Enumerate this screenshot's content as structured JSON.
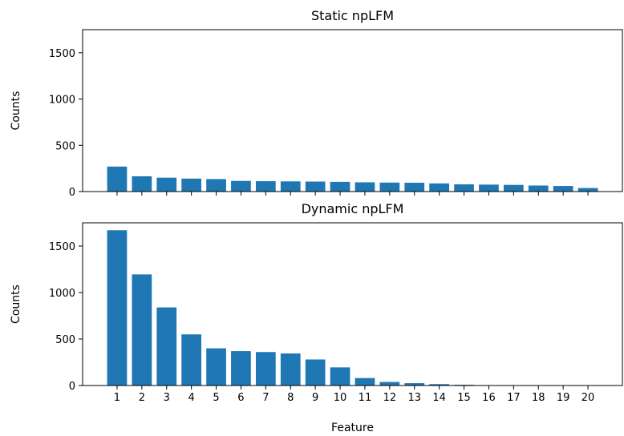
{
  "chart_data": [
    {
      "type": "bar",
      "title": "Static npLFM",
      "xlabel": "",
      "ylabel": "Counts",
      "ylim": [
        0,
        1750
      ],
      "yticks": [
        0,
        500,
        1000,
        1500
      ],
      "categories": [
        "1",
        "2",
        "3",
        "4",
        "5",
        "6",
        "7",
        "8",
        "9",
        "10",
        "11",
        "12",
        "13",
        "14",
        "15",
        "16",
        "17",
        "18",
        "19",
        "20"
      ],
      "values": [
        270,
        165,
        150,
        140,
        135,
        115,
        112,
        110,
        108,
        105,
        100,
        97,
        95,
        88,
        78,
        75,
        72,
        65,
        60,
        38
      ],
      "show_xtick_labels": false,
      "grid": false,
      "color": "#1f77b4"
    },
    {
      "type": "bar",
      "title": "Dynamic npLFM",
      "xlabel": "Feature",
      "ylabel": "Counts",
      "ylim": [
        0,
        1750
      ],
      "yticks": [
        0,
        500,
        1000,
        1500
      ],
      "categories": [
        "1",
        "2",
        "3",
        "4",
        "5",
        "6",
        "7",
        "8",
        "9",
        "10",
        "11",
        "12",
        "13",
        "14",
        "15",
        "16",
        "17",
        "18",
        "19",
        "20"
      ],
      "values": [
        1670,
        1195,
        840,
        550,
        400,
        370,
        360,
        345,
        280,
        195,
        80,
        38,
        25,
        15,
        8,
        4,
        3,
        2,
        2,
        1
      ],
      "show_xtick_labels": true,
      "grid": false,
      "color": "#1f77b4"
    }
  ]
}
